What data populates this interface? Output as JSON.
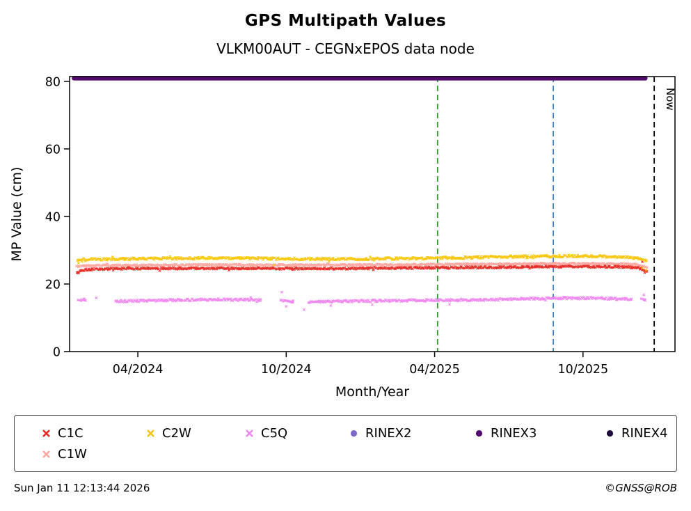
{
  "header": {
    "title": "GPS Multipath Values",
    "subtitle": "VLKM00AUT - CEGNxEPOS data node"
  },
  "footer": {
    "timestamp": "Sun Jan 11 12:13:44 2026",
    "credit": "©GNSS@ROB"
  },
  "chart_data": {
    "type": "scatter",
    "title": "GPS Multipath Values",
    "subtitle": "VLKM00AUT - CEGNxEPOS data node",
    "xlabel": "Month/Year",
    "ylabel": "MP Value (cm)",
    "xlim": [
      2024.02,
      2026.06
    ],
    "ylim": [
      0,
      81.4
    ],
    "grid": false,
    "legend_position": "bottom",
    "x_ticks": [
      {
        "value": 2024.25,
        "label": "04/2024"
      },
      {
        "value": 2024.75,
        "label": "10/2024"
      },
      {
        "value": 2025.25,
        "label": "04/2025"
      },
      {
        "value": 2025.75,
        "label": "10/2025"
      }
    ],
    "y_ticks": [
      0,
      20,
      40,
      60,
      80
    ],
    "series": [
      {
        "name": "C1W",
        "color": "#ffa39d",
        "marker": "x",
        "noise": 0.2,
        "density": 330,
        "control": [
          [
            2024.045,
            25.2
          ],
          [
            2024.1,
            25.5
          ],
          [
            2024.3,
            25.6
          ],
          [
            2024.5,
            25.7
          ],
          [
            2024.7,
            25.65
          ],
          [
            2024.9,
            25.6
          ],
          [
            2025.1,
            25.7
          ],
          [
            2025.3,
            25.8
          ],
          [
            2025.5,
            25.95
          ],
          [
            2025.7,
            26.05
          ],
          [
            2025.85,
            26.0
          ],
          [
            2025.93,
            25.8
          ],
          [
            2025.965,
            25.0
          ]
        ],
        "gaps": [],
        "outliers": []
      },
      {
        "name": "C1C",
        "color": "#e5231b",
        "marker": "x",
        "noise": 0.26,
        "density": 330,
        "control": [
          [
            2024.045,
            23.6
          ],
          [
            2024.07,
            24.2
          ],
          [
            2024.15,
            24.5
          ],
          [
            2024.3,
            24.6
          ],
          [
            2024.5,
            24.65
          ],
          [
            2024.7,
            24.6
          ],
          [
            2024.9,
            24.55
          ],
          [
            2025.1,
            24.7
          ],
          [
            2025.3,
            24.85
          ],
          [
            2025.5,
            25.0
          ],
          [
            2025.7,
            25.15
          ],
          [
            2025.85,
            25.1
          ],
          [
            2025.93,
            24.9
          ],
          [
            2025.965,
            23.9
          ]
        ],
        "gaps": [],
        "outliers": [
          [
            2024.05,
            23.2
          ],
          [
            2025.95,
            26.6
          ],
          [
            2025.958,
            23.4
          ]
        ]
      },
      {
        "name": "C2W",
        "color": "#f5c400",
        "marker": "x",
        "noise": 0.32,
        "density": 330,
        "control": [
          [
            2024.045,
            26.9
          ],
          [
            2024.1,
            27.3
          ],
          [
            2024.25,
            27.5
          ],
          [
            2024.4,
            27.6
          ],
          [
            2024.55,
            27.7
          ],
          [
            2024.7,
            27.5
          ],
          [
            2024.85,
            27.4
          ],
          [
            2025.0,
            27.4
          ],
          [
            2025.2,
            27.6
          ],
          [
            2025.4,
            27.9
          ],
          [
            2025.6,
            28.2
          ],
          [
            2025.75,
            28.3
          ],
          [
            2025.88,
            28.0
          ],
          [
            2025.94,
            27.6
          ],
          [
            2025.965,
            26.8
          ]
        ],
        "gaps": [],
        "outliers": [
          [
            2024.05,
            26.2
          ],
          [
            2024.71,
            25.7
          ],
          [
            2025.95,
            24.8
          ],
          [
            2025.962,
            24.1
          ]
        ]
      },
      {
        "name": "C5Q",
        "color": "#ee82ee",
        "marker": "x",
        "noise": 0.32,
        "density": 330,
        "control": [
          [
            2024.05,
            15.4
          ],
          [
            2024.2,
            14.9
          ],
          [
            2024.35,
            15.2
          ],
          [
            2024.5,
            15.4
          ],
          [
            2024.65,
            15.3
          ],
          [
            2024.8,
            14.7
          ],
          [
            2024.95,
            14.9
          ],
          [
            2025.1,
            15.1
          ],
          [
            2025.25,
            15.2
          ],
          [
            2025.4,
            15.3
          ],
          [
            2025.55,
            15.6
          ],
          [
            2025.7,
            15.85
          ],
          [
            2025.8,
            15.8
          ],
          [
            2025.9,
            15.5
          ],
          [
            2025.96,
            15.3
          ]
        ],
        "gaps": [
          [
            2024.075,
            2024.17
          ],
          [
            2024.665,
            2024.73
          ],
          [
            2024.775,
            2024.825
          ],
          [
            2025.915,
            2025.945
          ]
        ],
        "outliers": [
          [
            2024.11,
            15.9
          ],
          [
            2024.735,
            17.6
          ],
          [
            2024.75,
            13.4
          ],
          [
            2024.81,
            12.4
          ],
          [
            2024.9,
            13.6
          ],
          [
            2025.04,
            13.9
          ],
          [
            2025.3,
            14.0
          ],
          [
            2025.955,
            16.8
          ]
        ]
      }
    ],
    "hline": {
      "name": "RINEX3",
      "y": 80.9,
      "x_start": 2024.035,
      "x_end": 2025.96,
      "color": "#530a6e",
      "width": 6.5
    },
    "vlines": [
      {
        "name": "green-marker-line",
        "x": 2025.26,
        "color": "#2e9d2e",
        "label": ""
      },
      {
        "name": "blue-marker-line",
        "x": 2025.65,
        "color": "#3d7dbf",
        "label": ""
      },
      {
        "name": "now-line",
        "x": 2025.99,
        "color": "#000000",
        "label": "Now"
      }
    ],
    "legend": [
      {
        "label": "C1C",
        "color": "#e5231b",
        "marker": "x"
      },
      {
        "label": "C2W",
        "color": "#f5c400",
        "marker": "x"
      },
      {
        "label": "C5Q",
        "color": "#ee82ee",
        "marker": "x"
      },
      {
        "label": "RINEX2",
        "color": "#7b68c8",
        "marker": "dot"
      },
      {
        "label": "RINEX3",
        "color": "#530a6e",
        "marker": "dot"
      },
      {
        "label": "RINEX4",
        "color": "#1e0b3c",
        "marker": "dot"
      },
      {
        "label": "C1W",
        "color": "#ffa39d",
        "marker": "x"
      }
    ]
  }
}
